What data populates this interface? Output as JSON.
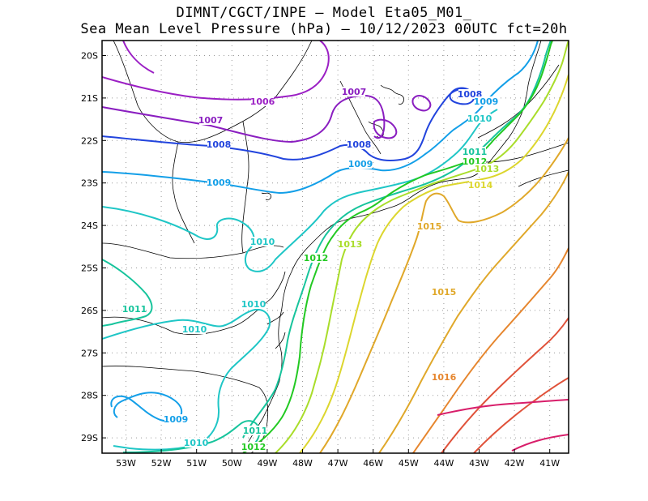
{
  "header": {
    "line1": "DIMNT/CGCT/INPE –  Model Eta05_M01_",
    "line2": "Sea Mean Level Pressure (hPa) – 10/12/2023 00UTC fct=20h"
  },
  "axes": {
    "x_ticks": [
      "53W",
      "52W",
      "51W",
      "50W",
      "49W",
      "48W",
      "47W",
      "46W",
      "45W",
      "44W",
      "43W",
      "42W",
      "41W"
    ],
    "y_ticks": [
      "20S",
      "21S",
      "22S",
      "23S",
      "24S",
      "25S",
      "26S",
      "27S",
      "28S",
      "29S"
    ]
  },
  "colors": {
    "1006": "#9b1fc4",
    "1007": "#8a1ec0",
    "1008": "#2244dd",
    "1009": "#139fe8",
    "1010": "#1fc6c6",
    "1011": "#17c49c",
    "1012": "#22c922",
    "1013": "#a9dd2a",
    "1014": "#dcd62e",
    "1015": "#e0a82a",
    "1016": "#e6862e",
    "1017": "#e0523a",
    "1018": "#d81e6a"
  },
  "contour_labels": [
    {
      "text": "1006",
      "level": "1006"
    },
    {
      "text": "1007",
      "level": "1007"
    },
    {
      "text": "1007",
      "level": "1007"
    },
    {
      "text": "1008",
      "level": "1008"
    },
    {
      "text": "1008",
      "level": "1008"
    },
    {
      "text": "1008",
      "level": "1008"
    },
    {
      "text": "1009",
      "level": "1009"
    },
    {
      "text": "1009",
      "level": "1009"
    },
    {
      "text": "1009",
      "level": "1009"
    },
    {
      "text": "1009",
      "level": "1009"
    },
    {
      "text": "1010",
      "level": "1010"
    },
    {
      "text": "1010",
      "level": "1010"
    },
    {
      "text": "1010",
      "level": "1010"
    },
    {
      "text": "1010",
      "level": "1010"
    },
    {
      "text": "1010",
      "level": "1010"
    },
    {
      "text": "1011",
      "level": "1011"
    },
    {
      "text": "1011",
      "level": "1011"
    },
    {
      "text": "1011",
      "level": "1011"
    },
    {
      "text": "1012",
      "level": "1012"
    },
    {
      "text": "1012",
      "level": "1012"
    },
    {
      "text": "1012",
      "level": "1012"
    },
    {
      "text": "1013",
      "level": "1013"
    },
    {
      "text": "1013",
      "level": "1013"
    },
    {
      "text": "1014",
      "level": "1014"
    },
    {
      "text": "1015",
      "level": "1015"
    },
    {
      "text": "1015",
      "level": "1015"
    },
    {
      "text": "1016",
      "level": "1016"
    }
  ]
}
